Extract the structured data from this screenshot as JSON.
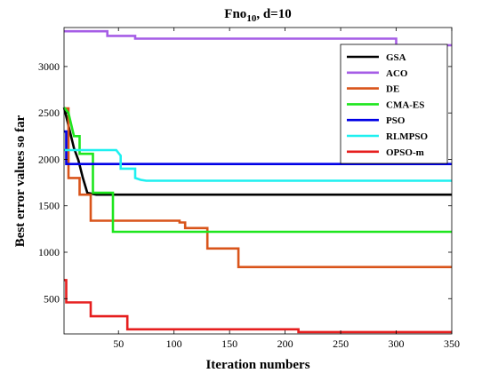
{
  "chart_data": {
    "type": "line",
    "title_main": "Fno",
    "title_sub": "10",
    "title_rest": ", d=10",
    "xlabel": "Iteration numbers",
    "ylabel": "Best error values so far",
    "xlim": [
      1,
      350
    ],
    "ylim": [
      120,
      3420
    ],
    "xticks": [
      50,
      100,
      150,
      200,
      250,
      300,
      350
    ],
    "yticks": [
      500,
      1000,
      1500,
      2000,
      2500,
      3000
    ],
    "legend_position": "top-right",
    "series": [
      {
        "name": "GSA",
        "color": "#000000",
        "x": [
          1,
          10,
          14,
          18,
          22,
          30,
          350
        ],
        "y": [
          2560,
          2120,
          1990,
          1800,
          1640,
          1620,
          1620
        ]
      },
      {
        "name": "ACO",
        "color": "#a65de6",
        "x": [
          1,
          40,
          40,
          65,
          65,
          300,
          300,
          350
        ],
        "y": [
          3380,
          3380,
          3330,
          3330,
          3300,
          3300,
          3230,
          3230
        ]
      },
      {
        "name": "DE",
        "color": "#d9541a",
        "x": [
          1,
          5,
          5,
          15,
          15,
          25,
          25,
          105,
          105,
          110,
          110,
          130,
          130,
          158,
          158,
          350
        ],
        "y": [
          2550,
          2550,
          1800,
          1800,
          1620,
          1620,
          1340,
          1340,
          1320,
          1320,
          1260,
          1260,
          1040,
          1040,
          840,
          840
        ]
      },
      {
        "name": "CMA-ES",
        "color": "#1ee61e",
        "x": [
          1,
          5,
          10,
          15,
          15,
          27,
          27,
          45,
          45,
          350
        ],
        "y": [
          2560,
          2500,
          2250,
          2250,
          2060,
          2060,
          1640,
          1640,
          1220,
          1220
        ]
      },
      {
        "name": "PSO",
        "color": "#0000e6",
        "x": [
          1,
          3,
          3,
          350
        ],
        "y": [
          2300,
          2300,
          1950,
          1950
        ]
      },
      {
        "name": "RLMPSO",
        "color": "#1ef0f0",
        "x": [
          1,
          48,
          52,
          52,
          65,
          65,
          70,
          75,
          350
        ],
        "y": [
          2100,
          2100,
          2040,
          1900,
          1900,
          1800,
          1780,
          1770,
          1770
        ]
      },
      {
        "name": "OPSO-m",
        "color": "#e61e1e",
        "x": [
          1,
          3,
          3,
          25,
          25,
          58,
          58,
          212,
          212,
          350
        ],
        "y": [
          700,
          700,
          460,
          460,
          310,
          310,
          170,
          170,
          140,
          140
        ]
      }
    ]
  }
}
